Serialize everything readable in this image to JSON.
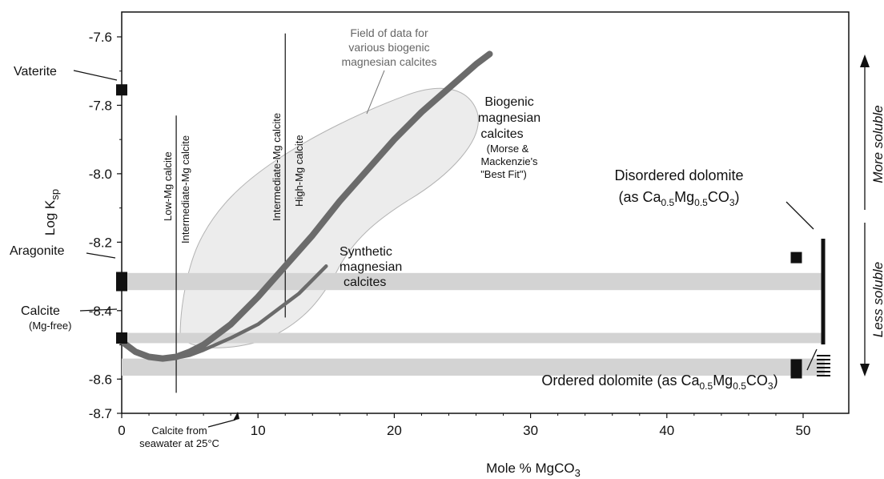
{
  "chart_data": {
    "type": "line",
    "xlabel_main": "Mole % MgCO",
    "xlabel_sub": "3",
    "ylabel_main": "Log K",
    "ylabel_sub": "sp",
    "xlim": [
      0,
      51
    ],
    "ylim": [
      -8.7,
      -7.57
    ],
    "x_ticks": [
      0,
      10,
      20,
      30,
      40,
      50
    ],
    "y_ticks": [
      -7.6,
      -7.8,
      -8.0,
      -8.2,
      -8.4,
      -8.6,
      -8.7
    ],
    "series": [
      {
        "name": "Biogenic magnesian calcites",
        "x": [
          0,
          1,
          2,
          3,
          4,
          5,
          6,
          8,
          10,
          12,
          14,
          16,
          18,
          20,
          22,
          24,
          26,
          27
        ],
        "y": [
          -8.49,
          -8.52,
          -8.535,
          -8.54,
          -8.535,
          -8.52,
          -8.5,
          -8.44,
          -8.36,
          -8.27,
          -8.18,
          -8.08,
          -7.99,
          -7.9,
          -7.82,
          -7.75,
          -7.68,
          -7.65
        ],
        "color": "#6b6b6b",
        "width": 8
      },
      {
        "name": "Synthetic magnesian calcites",
        "x": [
          0,
          1,
          2,
          3,
          4,
          5,
          6,
          8,
          10,
          12,
          13,
          14,
          15
        ],
        "y": [
          -8.49,
          -8.52,
          -8.535,
          -8.54,
          -8.538,
          -8.53,
          -8.515,
          -8.48,
          -8.44,
          -8.38,
          -8.35,
          -8.31,
          -8.27
        ],
        "color": "#6b6b6b",
        "width": 4.5
      }
    ],
    "horizontal_bands": [
      {
        "y_top": -8.29,
        "y_bottom": -8.34
      },
      {
        "y_top": -8.465,
        "y_bottom": -8.495
      },
      {
        "y_top": -8.54,
        "y_bottom": -8.59
      }
    ],
    "vertical_lines": [
      {
        "x": 4,
        "y_top": -7.83,
        "y_bottom": -8.64
      },
      {
        "x": 12,
        "y_top": -7.59,
        "y_bottom": -8.42
      }
    ],
    "points": [
      {
        "label": "Vaterite",
        "x": 0,
        "y": -7.755
      },
      {
        "label": "Aragonite",
        "x": 0,
        "y": -8.315
      },
      {
        "label": "Calcite",
        "x": 0,
        "y": -8.48
      },
      {
        "label": "Disordered dolomite",
        "x": 49.5,
        "y": -8.245
      },
      {
        "label": "Ordered dolomite",
        "x": 49.5,
        "y": -8.57
      }
    ],
    "labels": {
      "vaterite": "Vaterite",
      "aragonite": "Aragonite",
      "calcite": "Calcite",
      "calcite_sub": "(Mg-free)",
      "field_line1": "Field of data for",
      "field_line2": "various biogenic",
      "field_line3": "magnesian calcites",
      "bio_line1": "Biogenic",
      "bio_line2": "magnesian",
      "bio_line3": "calcites",
      "bio_line4": "(Morse &",
      "bio_line5": "Mackenzie's",
      "bio_line6": "\"Best Fit\")",
      "syn_line1": "Synthetic",
      "syn_line2": "magnesian",
      "syn_line3": "calcites",
      "low_mg": "Low-Mg calcite",
      "int_mg_a": "Intermediate-Mg calcite",
      "int_mg_b": "Intermediate-Mg calcite",
      "high_mg": "High-Mg calcite",
      "disordered_line1": "Disordered dolomite",
      "disordered_line2_a": "(as Ca",
      "disordered_line2_b": "0.5",
      "disordered_line2_c": "Mg",
      "disordered_line2_d": "0.5",
      "disordered_line2_e": "CO",
      "disordered_line2_f": "3",
      "disordered_line2_g": ")",
      "ordered_a": "Ordered dolomite (as Ca",
      "ordered_b": "0.5",
      "ordered_c": "Mg",
      "ordered_d": "0.5",
      "ordered_e": "CO",
      "ordered_f": "3",
      "ordered_g": ")",
      "seawater_line1": "Calcite from",
      "seawater_line2": "seawater at 25°C",
      "more_soluble": "More soluble",
      "less_soluble": "Less soluble"
    }
  }
}
